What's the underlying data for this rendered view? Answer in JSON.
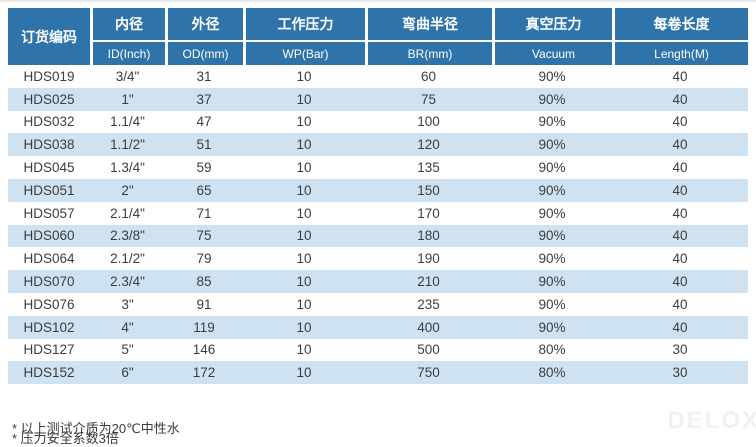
{
  "colors": {
    "header_blue": "#2e73aa",
    "stripe_blue": "#cfe2f1",
    "text_dark": "#3d3d3d"
  },
  "table": {
    "columns": [
      {
        "cn": "订货编码",
        "en": ""
      },
      {
        "cn": "内径",
        "en": "ID(Inch)"
      },
      {
        "cn": "外径",
        "en": "OD(mm)"
      },
      {
        "cn": "工作压力",
        "en": "WP(Bar)"
      },
      {
        "cn": "弯曲半径",
        "en": "BR(mm)"
      },
      {
        "cn": "真空压力",
        "en": "Vacuum"
      },
      {
        "cn": "每卷长度",
        "en": "Length(M)"
      }
    ],
    "rows": [
      [
        "HDS019",
        "3/4\"",
        "31",
        "10",
        "60",
        "90%",
        "40"
      ],
      [
        "HDS025",
        "1\"",
        "37",
        "10",
        "75",
        "90%",
        "40"
      ],
      [
        "HDS032",
        "1.1/4\"",
        "47",
        "10",
        "100",
        "90%",
        "40"
      ],
      [
        "HDS038",
        "1.1/2\"",
        "51",
        "10",
        "120",
        "90%",
        "40"
      ],
      [
        "HDS045",
        "1.3/4\"",
        "59",
        "10",
        "135",
        "90%",
        "40"
      ],
      [
        "HDS051",
        "2\"",
        "65",
        "10",
        "150",
        "90%",
        "40"
      ],
      [
        "HDS057",
        "2.1/4\"",
        "71",
        "10",
        "170",
        "90%",
        "40"
      ],
      [
        "HDS060",
        "2.3/8\"",
        "75",
        "10",
        "180",
        "90%",
        "40"
      ],
      [
        "HDS064",
        "2.1/2\"",
        "79",
        "10",
        "190",
        "90%",
        "40"
      ],
      [
        "HDS070",
        "2.3/4\"",
        "85",
        "10",
        "210",
        "90%",
        "40"
      ],
      [
        "HDS076",
        "3\"",
        "91",
        "10",
        "235",
        "90%",
        "40"
      ],
      [
        "HDS102",
        "4\"",
        "119",
        "10",
        "400",
        "90%",
        "40"
      ],
      [
        "HDS127",
        "5\"",
        "146",
        "10",
        "500",
        "80%",
        "30"
      ],
      [
        "HDS152",
        "6\"",
        "172",
        "10",
        "750",
        "80%",
        "30"
      ]
    ]
  },
  "page": {
    "footnotes": [
      "* 以上测试介质为20℃中性水",
      "* 压力安全系数3倍"
    ],
    "watermark": "DELOX"
  }
}
